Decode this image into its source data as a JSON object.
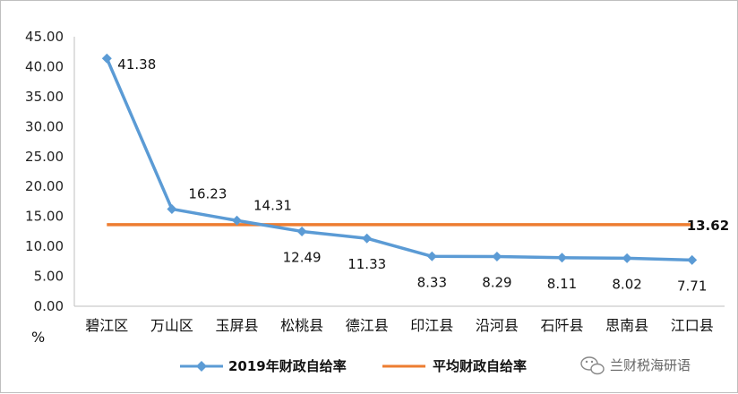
{
  "chart_data": {
    "type": "line",
    "categories": [
      "碧江区",
      "万山区",
      "玉屏县",
      "松桃县",
      "德江县",
      "印江县",
      "沿河县",
      "石阡县",
      "思南县",
      "江口县"
    ],
    "series": [
      {
        "name": "2019年财政自给率",
        "values": [
          41.38,
          16.23,
          14.31,
          12.49,
          11.33,
          8.33,
          8.29,
          8.11,
          8.02,
          7.71
        ],
        "color": "#5b9bd5",
        "marker": "diamond"
      },
      {
        "name": "平均财政自给率",
        "values": [
          13.62,
          13.62,
          13.62,
          13.62,
          13.62,
          13.62,
          13.62,
          13.62,
          13.62,
          13.62
        ],
        "color": "#ed7d31",
        "label": "13.62"
      }
    ],
    "data_labels": [
      "41.38",
      "16.23",
      "14.31",
      "12.49",
      "11.33",
      "8.33",
      "8.29",
      "8.11",
      "8.02",
      "7.71"
    ],
    "y_ticks": [
      "0.00",
      "5.00",
      "10.00",
      "15.00",
      "20.00",
      "25.00",
      "30.00",
      "35.00",
      "40.00",
      "45.00"
    ],
    "ylim": [
      0,
      45
    ],
    "y_unit": "%",
    "legend_position": "bottom",
    "grid": false
  },
  "watermark": {
    "icon": "wechat-icon",
    "text": "兰财税海研语"
  }
}
